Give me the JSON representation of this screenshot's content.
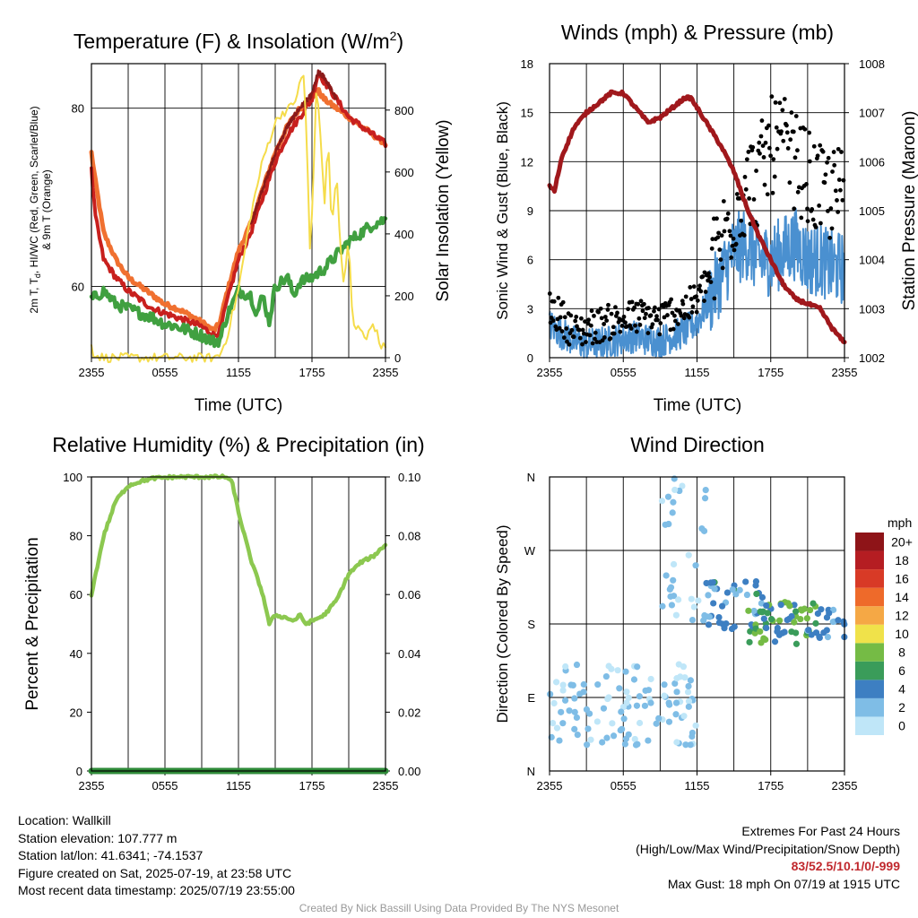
{
  "colors": {
    "red": "#c8201e",
    "dark_red": "#8b1a1a",
    "scarlet": "#d44020",
    "orange": "#f07030",
    "green": "#40a040",
    "yellow": "#f5dc4a",
    "blue": "#4a90d0",
    "black": "#000000",
    "maroon": "#a0181c",
    "lightgreen": "#8cc850",
    "precip_green": "#2e8a38",
    "extremes": "#c0282d"
  },
  "chart_data": [
    {
      "id": "temperature",
      "type": "line",
      "title": "Temperature (F) & Insolation (W/m²)",
      "title_main": "Temperature (F) & Insolation (W/m",
      "title_sup": "2",
      "title_close": ")",
      "xlabel": "Time (UTC)",
      "ylabel_left_line1": "2m T, Tₓ, HI/WC (Red, Green, Scarlet/Blue)",
      "ylabel_left_line1_parts": [
        "2m T, T",
        "d",
        ", HI/WC (Red, Green, Scarlet/Blue)"
      ],
      "ylabel_left_line2": "& 9m T (Orange)",
      "ylabel_right": "Solar Insolation (Yellow)",
      "xticks": [
        "2355",
        "0555",
        "1155",
        "1755",
        "2355"
      ],
      "xlim": [
        0,
        24
      ],
      "ylim_left": [
        52,
        85
      ],
      "yticks_left": [
        60,
        80
      ],
      "ylim_right": [
        0,
        950
      ],
      "yticks_right": [
        0,
        200,
        400,
        600,
        800
      ],
      "series": [
        {
          "color_key": "orange",
          "axis": "left",
          "x": [
            0,
            0.3,
            1,
            2,
            3,
            4,
            5,
            6,
            7,
            8,
            9,
            10,
            10.5,
            11,
            12,
            13,
            14,
            15,
            16,
            17,
            18,
            18.5,
            19,
            20,
            21,
            22,
            23,
            24
          ],
          "y": [
            75,
            72,
            66,
            63,
            61,
            60,
            59,
            58,
            57.5,
            56.8,
            56,
            55,
            56,
            59,
            64,
            67,
            71,
            75,
            78,
            80,
            81,
            82,
            81,
            80,
            79,
            78,
            77,
            76
          ]
        },
        {
          "color_key": "red",
          "axis": "left",
          "x": [
            0,
            0.3,
            1,
            2,
            3,
            4,
            5,
            6,
            7,
            8,
            9,
            9.5,
            10,
            10.5,
            11,
            12,
            13,
            14,
            15,
            16,
            17,
            18,
            18.5,
            19,
            20,
            21,
            22,
            23,
            24
          ],
          "y": [
            73,
            68,
            63,
            61,
            59.5,
            58.5,
            57.5,
            57,
            56.5,
            56,
            55.5,
            55,
            54.5,
            55,
            58,
            63,
            66,
            70,
            74,
            77,
            79,
            81,
            84,
            83,
            81,
            79,
            78,
            77,
            76
          ]
        },
        {
          "color_key": "dark_red",
          "axis": "left",
          "x": [
            13,
            14,
            15,
            16,
            17,
            18,
            18.5,
            19,
            20
          ],
          "y": [
            67,
            71,
            75,
            78,
            80,
            81.5,
            84,
            83.5,
            81
          ]
        },
        {
          "color_key": "green",
          "axis": "left",
          "x": [
            0,
            1,
            2,
            3,
            4,
            5,
            6,
            7,
            8,
            9,
            10,
            10.5,
            11,
            12,
            13,
            13.5,
            14,
            14.5,
            15,
            16,
            16.5,
            17,
            18,
            19,
            20,
            21,
            22,
            23,
            24
          ],
          "y": [
            58.5,
            59.5,
            58,
            57.5,
            57,
            56.5,
            55.8,
            55.5,
            55,
            54.5,
            53.8,
            54,
            56.5,
            59.5,
            59,
            57,
            59,
            56,
            60,
            61,
            59,
            60.5,
            61,
            62,
            63.5,
            65,
            66,
            67,
            67.5
          ]
        },
        {
          "color_key": "yellow",
          "axis": "right",
          "x": [
            0,
            0.2,
            1,
            3,
            6,
            9,
            10,
            10.5,
            11,
            12,
            13,
            14,
            15,
            15.5,
            16,
            16.5,
            17,
            17.3,
            17.6,
            17.8,
            18.1,
            18.3,
            18.6,
            19,
            19.3,
            19.6,
            20,
            20.3,
            20.6,
            21,
            21.3,
            21.6,
            22,
            22.5,
            23,
            23.5,
            24
          ],
          "y": [
            50,
            10,
            0,
            0,
            0,
            0,
            0,
            10,
            60,
            220,
            460,
            640,
            760,
            790,
            800,
            820,
            880,
            920,
            700,
            330,
            520,
            860,
            800,
            480,
            720,
            420,
            600,
            360,
            240,
            380,
            120,
            90,
            100,
            60,
            120,
            50,
            30
          ]
        }
      ]
    },
    {
      "id": "winds",
      "type": "scatter",
      "title": "Winds (mph) & Pressure (mb)",
      "xlabel": "Time (UTC)",
      "ylabel_left": "Sonic Wind & Gust (Blue, Black)",
      "ylabel_right": "Station Pressure (Maroon)",
      "xticks": [
        "2355",
        "0555",
        "1155",
        "1755",
        "2355"
      ],
      "xlim": [
        0,
        24
      ],
      "ylim_left": [
        0,
        18
      ],
      "yticks_left": [
        0,
        3,
        6,
        9,
        12,
        15,
        18
      ],
      "ylim_right": [
        1002,
        1008
      ],
      "yticks_right": [
        1002,
        1003,
        1004,
        1005,
        1006,
        1007,
        1008
      ],
      "pressure": {
        "color_key": "maroon",
        "x": [
          0,
          0.4,
          1,
          2,
          3,
          4,
          5,
          6,
          7,
          8,
          9,
          10,
          11,
          11.5,
          12,
          13,
          14,
          15,
          16,
          17,
          18,
          19,
          20,
          21,
          22,
          22.5,
          23,
          24
        ],
        "y": [
          1005.5,
          1005.4,
          1006.1,
          1006.7,
          1007.0,
          1007.2,
          1007.4,
          1007.4,
          1007.1,
          1006.8,
          1006.9,
          1007.1,
          1007.3,
          1007.3,
          1007.1,
          1006.7,
          1006.3,
          1005.8,
          1005.1,
          1004.5,
          1004.0,
          1003.5,
          1003.2,
          1003.1,
          1003.0,
          1002.8,
          1002.6,
          1002.3
        ]
      },
      "wind_trend": {
        "color_key": "blue",
        "x": [
          0,
          1,
          2,
          3,
          4,
          5,
          6,
          7,
          8,
          9,
          10,
          11,
          12,
          13,
          14,
          15,
          16,
          17,
          18,
          19,
          20,
          21,
          22,
          23,
          24
        ],
        "y": [
          2,
          1.5,
          1,
          0.8,
          0.9,
          1.0,
          1.2,
          1.3,
          1.1,
          1.0,
          1.3,
          1.6,
          2.2,
          3.5,
          5,
          6.5,
          7,
          6,
          6,
          6.5,
          7,
          6,
          6,
          5.5,
          5.5
        ]
      },
      "gust_trend": {
        "color_key": "black",
        "x": [
          0,
          1,
          2,
          3,
          4,
          5,
          6,
          7,
          8,
          9,
          10,
          11,
          12,
          13,
          14,
          15,
          16,
          17,
          18,
          19,
          20,
          21,
          22,
          23,
          24
        ],
        "y": [
          3,
          2.5,
          1.5,
          1.8,
          2,
          2.2,
          2.3,
          2.5,
          2.5,
          2.3,
          2.8,
          3,
          3.5,
          5,
          7,
          9,
          10.5,
          11,
          13,
          13,
          12,
          11,
          10,
          10,
          10
        ]
      }
    },
    {
      "id": "humidity",
      "type": "line",
      "title": "Relative Humidity (%) & Precipitation (in)",
      "xlabel": "",
      "ylabel_left": "Percent & Precipitation",
      "xticks": [
        "2355",
        "0555",
        "1155",
        "1755",
        "2355"
      ],
      "xlim": [
        0,
        24
      ],
      "ylim_left": [
        0,
        100
      ],
      "yticks_left": [
        0,
        20,
        40,
        60,
        80,
        100
      ],
      "ylim_right": [
        0,
        0.1
      ],
      "yticks_right": [
        "0.00",
        "0.02",
        "0.04",
        "0.06",
        "0.08",
        "0.10"
      ],
      "series": [
        {
          "color_key": "lightgreen",
          "x": [
            0,
            0.3,
            1,
            2,
            3,
            4,
            5,
            6,
            7,
            8,
            9,
            10,
            11,
            11.5,
            12,
            13,
            14,
            14.5,
            15,
            16,
            16.5,
            17,
            17.5,
            18,
            19,
            20,
            21,
            22,
            23,
            24
          ],
          "y": [
            60,
            66,
            80,
            92,
            97,
            98.5,
            99.5,
            99.8,
            100,
            100,
            100,
            100,
            100,
            98,
            88,
            72,
            60,
            50,
            53,
            52,
            51,
            53,
            50,
            51,
            53,
            58,
            67,
            71,
            73,
            77
          ]
        },
        {
          "color_key": "precip_green",
          "x": [
            0,
            24
          ],
          "y": [
            0,
            0
          ]
        }
      ]
    },
    {
      "id": "wind_direction",
      "type": "scatter",
      "title": "Wind Direction",
      "xlabel": "",
      "ylabel_left": "Direction (Colored By Speed)",
      "xticks": [
        "2355",
        "0555",
        "1155",
        "1755",
        "2355"
      ],
      "xlim": [
        0,
        24
      ],
      "ylim_left": [
        0,
        4
      ],
      "yticks_left": [
        "N",
        "E",
        "S",
        "W",
        "N"
      ],
      "colorbar": {
        "title": "mph",
        "labels": [
          "0",
          "2",
          "4",
          "6",
          "8",
          "10",
          "12",
          "14",
          "16",
          "18",
          "20+"
        ],
        "colors": [
          "#bfe6f8",
          "#7fbde6",
          "#3d7fc2",
          "#3a9c5a",
          "#75bb45",
          "#f0e24a",
          "#f5a845",
          "#ee6a2a",
          "#d83a26",
          "#b51d22",
          "#8e1418"
        ]
      },
      "clusters": [
        {
          "x_range": [
            0,
            12
          ],
          "y_center": 0.9,
          "y_spread": 0.55,
          "speed": [
            0,
            2.5
          ],
          "count": 110
        },
        {
          "x_range": [
            9,
            13
          ],
          "y_center": 3.0,
          "y_spread": 1.0,
          "speed": [
            0,
            2.5
          ],
          "count": 34
        },
        {
          "x_range": [
            12.5,
            17.5
          ],
          "y_center": 2.25,
          "y_spread": 0.35,
          "speed": [
            2,
            6
          ],
          "count": 40
        },
        {
          "x_range": [
            16,
            22
          ],
          "y_center": 2.0,
          "y_spread": 0.3,
          "speed": [
            4,
            9
          ],
          "count": 60
        },
        {
          "x_range": [
            21,
            24
          ],
          "y_center": 2.0,
          "y_spread": 0.2,
          "speed": [
            2,
            5
          ],
          "count": 20
        }
      ]
    }
  ],
  "footer": {
    "location": "Location: Wallkill",
    "elevation": "Station elevation: 107.777 m",
    "latlon": "Station lat/lon: 41.6341; -74.1537",
    "created": "Figure created on Sat, 2025-07-19, at 23:58 UTC",
    "recent": "Most recent data timestamp: 2025/07/19 23:55:00",
    "extremes_title": "Extremes For Past 24 Hours",
    "extremes_subtitle": "(High/Low/Max Wind/Precipitation/Snow Depth)",
    "extremes_values": "83/52.5/10.1/0/-999",
    "max_gust": "Max Gust: 18 mph On 07/19 at 1915 UTC",
    "credit": "Created By Nick Bassill Using Data Provided By The NYS Mesonet"
  }
}
